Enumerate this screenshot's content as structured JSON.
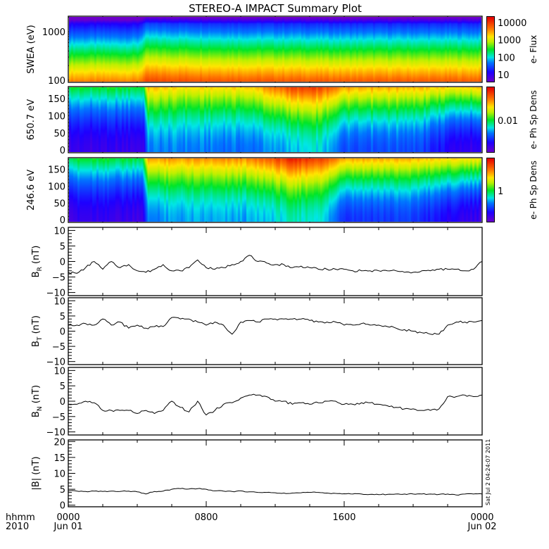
{
  "chart_data": {
    "type": "multi-panel",
    "title": "STEREO-A IMPACT Summary Plot",
    "x_axis": {
      "unit_label": "hhmm",
      "year_label": "2010",
      "range_hours": [
        0,
        24
      ],
      "ticks": [
        {
          "hour": 0,
          "label": "0000",
          "sublabel": "Jun 01"
        },
        {
          "hour": 8,
          "label": "0800",
          "sublabel": ""
        },
        {
          "hour": 16,
          "label": "1600",
          "sublabel": ""
        },
        {
          "hour": 24,
          "label": "0000",
          "sublabel": "Jun 02"
        }
      ]
    },
    "timestamp": "Sat Jul  2 04:24:07 2011",
    "colors": {
      "line": "#000000",
      "frame": "#000000"
    },
    "spectrograms": [
      {
        "name": "swea",
        "ylabel": "SWEA (eV)",
        "yscale": "log",
        "ylim": [
          90,
          2100
        ],
        "yticks": [
          100,
          1000
        ],
        "colorbar": {
          "title": "e- Flux",
          "ticks": [
            "10000",
            "1000",
            "100",
            "10"
          ]
        },
        "hours": [
          0,
          4,
          4.5,
          10,
          16,
          24
        ],
        "intensity_shift": [
          0.0,
          0.0,
          0.08,
          0.06,
          0.05,
          0.05
        ]
      },
      {
        "name": "pad_650",
        "ylabel": "650.7 eV",
        "yscale": "linear",
        "ylim": [
          -8,
          185
        ],
        "yticks": [
          0,
          50,
          100,
          150
        ],
        "colorbar": {
          "title": "e- Ph Sp Dens",
          "ticks": [
            "0.01"
          ]
        },
        "hours": [
          0,
          4.3,
          4.6,
          6.5,
          10.5,
          13,
          14.5,
          16,
          20,
          22.5,
          24
        ],
        "bottom_level": [
          0.1,
          0.1,
          0.3,
          0.3,
          0.28,
          0.35,
          0.38,
          0.25,
          0.25,
          0.12,
          0.1
        ],
        "top_level": [
          0.5,
          0.5,
          0.75,
          0.7,
          0.72,
          0.9,
          0.9,
          0.78,
          0.75,
          0.7,
          0.72
        ]
      },
      {
        "name": "pad_246",
        "ylabel": "246.6 eV",
        "yscale": "linear",
        "ylim": [
          -8,
          185
        ],
        "yticks": [
          0,
          50,
          100,
          150
        ],
        "colorbar": {
          "title": "e- Ph Sp Dens",
          "ticks": [
            "1"
          ]
        },
        "hours": [
          0,
          4.3,
          4.6,
          6.5,
          10.5,
          13,
          14.5,
          16,
          20,
          22.5,
          24
        ],
        "bottom_level": [
          0.1,
          0.1,
          0.3,
          0.33,
          0.33,
          0.4,
          0.4,
          0.22,
          0.22,
          0.12,
          0.1
        ],
        "top_level": [
          0.5,
          0.5,
          0.78,
          0.78,
          0.8,
          0.95,
          0.92,
          0.78,
          0.75,
          0.7,
          0.7
        ]
      }
    ],
    "line_panels": [
      {
        "name": "BR",
        "ylabel_main": "B",
        "ylabel_sub": "R",
        "ylabel_unit": " (nT)",
        "ylim": [
          -11,
          11
        ],
        "yticks": [
          -10,
          -5,
          0,
          5,
          10
        ],
        "values": [
          -3.5,
          -3.8,
          -2,
          0,
          -2.5,
          0,
          -2,
          -1,
          -3,
          -3.5,
          -2.5,
          -1,
          -3,
          -3,
          -2,
          0.5,
          -2,
          -2.5,
          -2,
          -1,
          0,
          2,
          0,
          -0.5,
          -1,
          -1,
          -2,
          -1.5,
          -2,
          -2.5,
          -2.5,
          -2.5,
          -2.5,
          -3,
          -3,
          -3,
          -3,
          -3,
          -3,
          -3.5,
          -3.5,
          -3,
          -3,
          -2.5,
          -2.5,
          -2.5,
          -3,
          -2.5,
          0
        ]
      },
      {
        "name": "BT",
        "ylabel_main": "B",
        "ylabel_sub": "T",
        "ylabel_unit": " (nT)",
        "ylim": [
          -11,
          11
        ],
        "yticks": [
          -10,
          -5,
          0,
          5,
          10
        ],
        "values": [
          2,
          2,
          2.5,
          2,
          4,
          2,
          3,
          1,
          2,
          1,
          1.5,
          1.5,
          4.5,
          4,
          4,
          3,
          2,
          3,
          2,
          -1,
          3,
          3.5,
          3,
          4,
          4,
          4,
          4,
          4,
          3.5,
          3,
          3,
          3,
          2,
          2,
          2.5,
          2,
          2,
          1.5,
          1,
          0.5,
          0,
          -0.5,
          -1,
          -1,
          2,
          3,
          3,
          3,
          3.5
        ]
      },
      {
        "name": "BN",
        "ylabel_main": "B",
        "ylabel_sub": "N",
        "ylabel_unit": " (nT)",
        "ylim": [
          -11,
          11
        ],
        "yticks": [
          -10,
          -5,
          0,
          5,
          10
        ],
        "values": [
          -1,
          -1,
          0,
          -0.5,
          -3,
          -3,
          -3,
          -3,
          -4,
          -3,
          -4,
          -3,
          0,
          -2,
          -3.5,
          0,
          -4.5,
          -3,
          -1,
          -0.5,
          1,
          2,
          2,
          1.5,
          0,
          0,
          -1,
          -0.5,
          -1,
          -0.5,
          0,
          0,
          -1,
          -1,
          -0.5,
          -0.5,
          -1,
          -1.5,
          -2,
          -2.5,
          -2.5,
          -3,
          -3,
          -2.5,
          1.5,
          1.5,
          2,
          1.5,
          2
        ]
      },
      {
        "name": "Bmag",
        "ylabel_main": "|B| (nT)",
        "ylabel_sub": "",
        "ylabel_unit": "",
        "ylim": [
          -0.5,
          20.5
        ],
        "yticks": [
          0,
          5,
          10,
          15,
          20
        ],
        "values": [
          4.5,
          4.4,
          4.3,
          4.4,
          4.3,
          4.4,
          4.3,
          4.4,
          4.2,
          3.5,
          4.3,
          4.4,
          5,
          5.2,
          5.1,
          5.2,
          5,
          4.5,
          4.4,
          4.3,
          4.5,
          4.2,
          4,
          4,
          3.9,
          3.8,
          3.8,
          3.9,
          4,
          4,
          3.8,
          3.7,
          3.6,
          3.5,
          3.5,
          3.4,
          3.3,
          3.4,
          3.5,
          3.5,
          3.5,
          3.5,
          3.5,
          3.4,
          3.5,
          3.2,
          3.5,
          3.5,
          3.5
        ]
      }
    ]
  }
}
